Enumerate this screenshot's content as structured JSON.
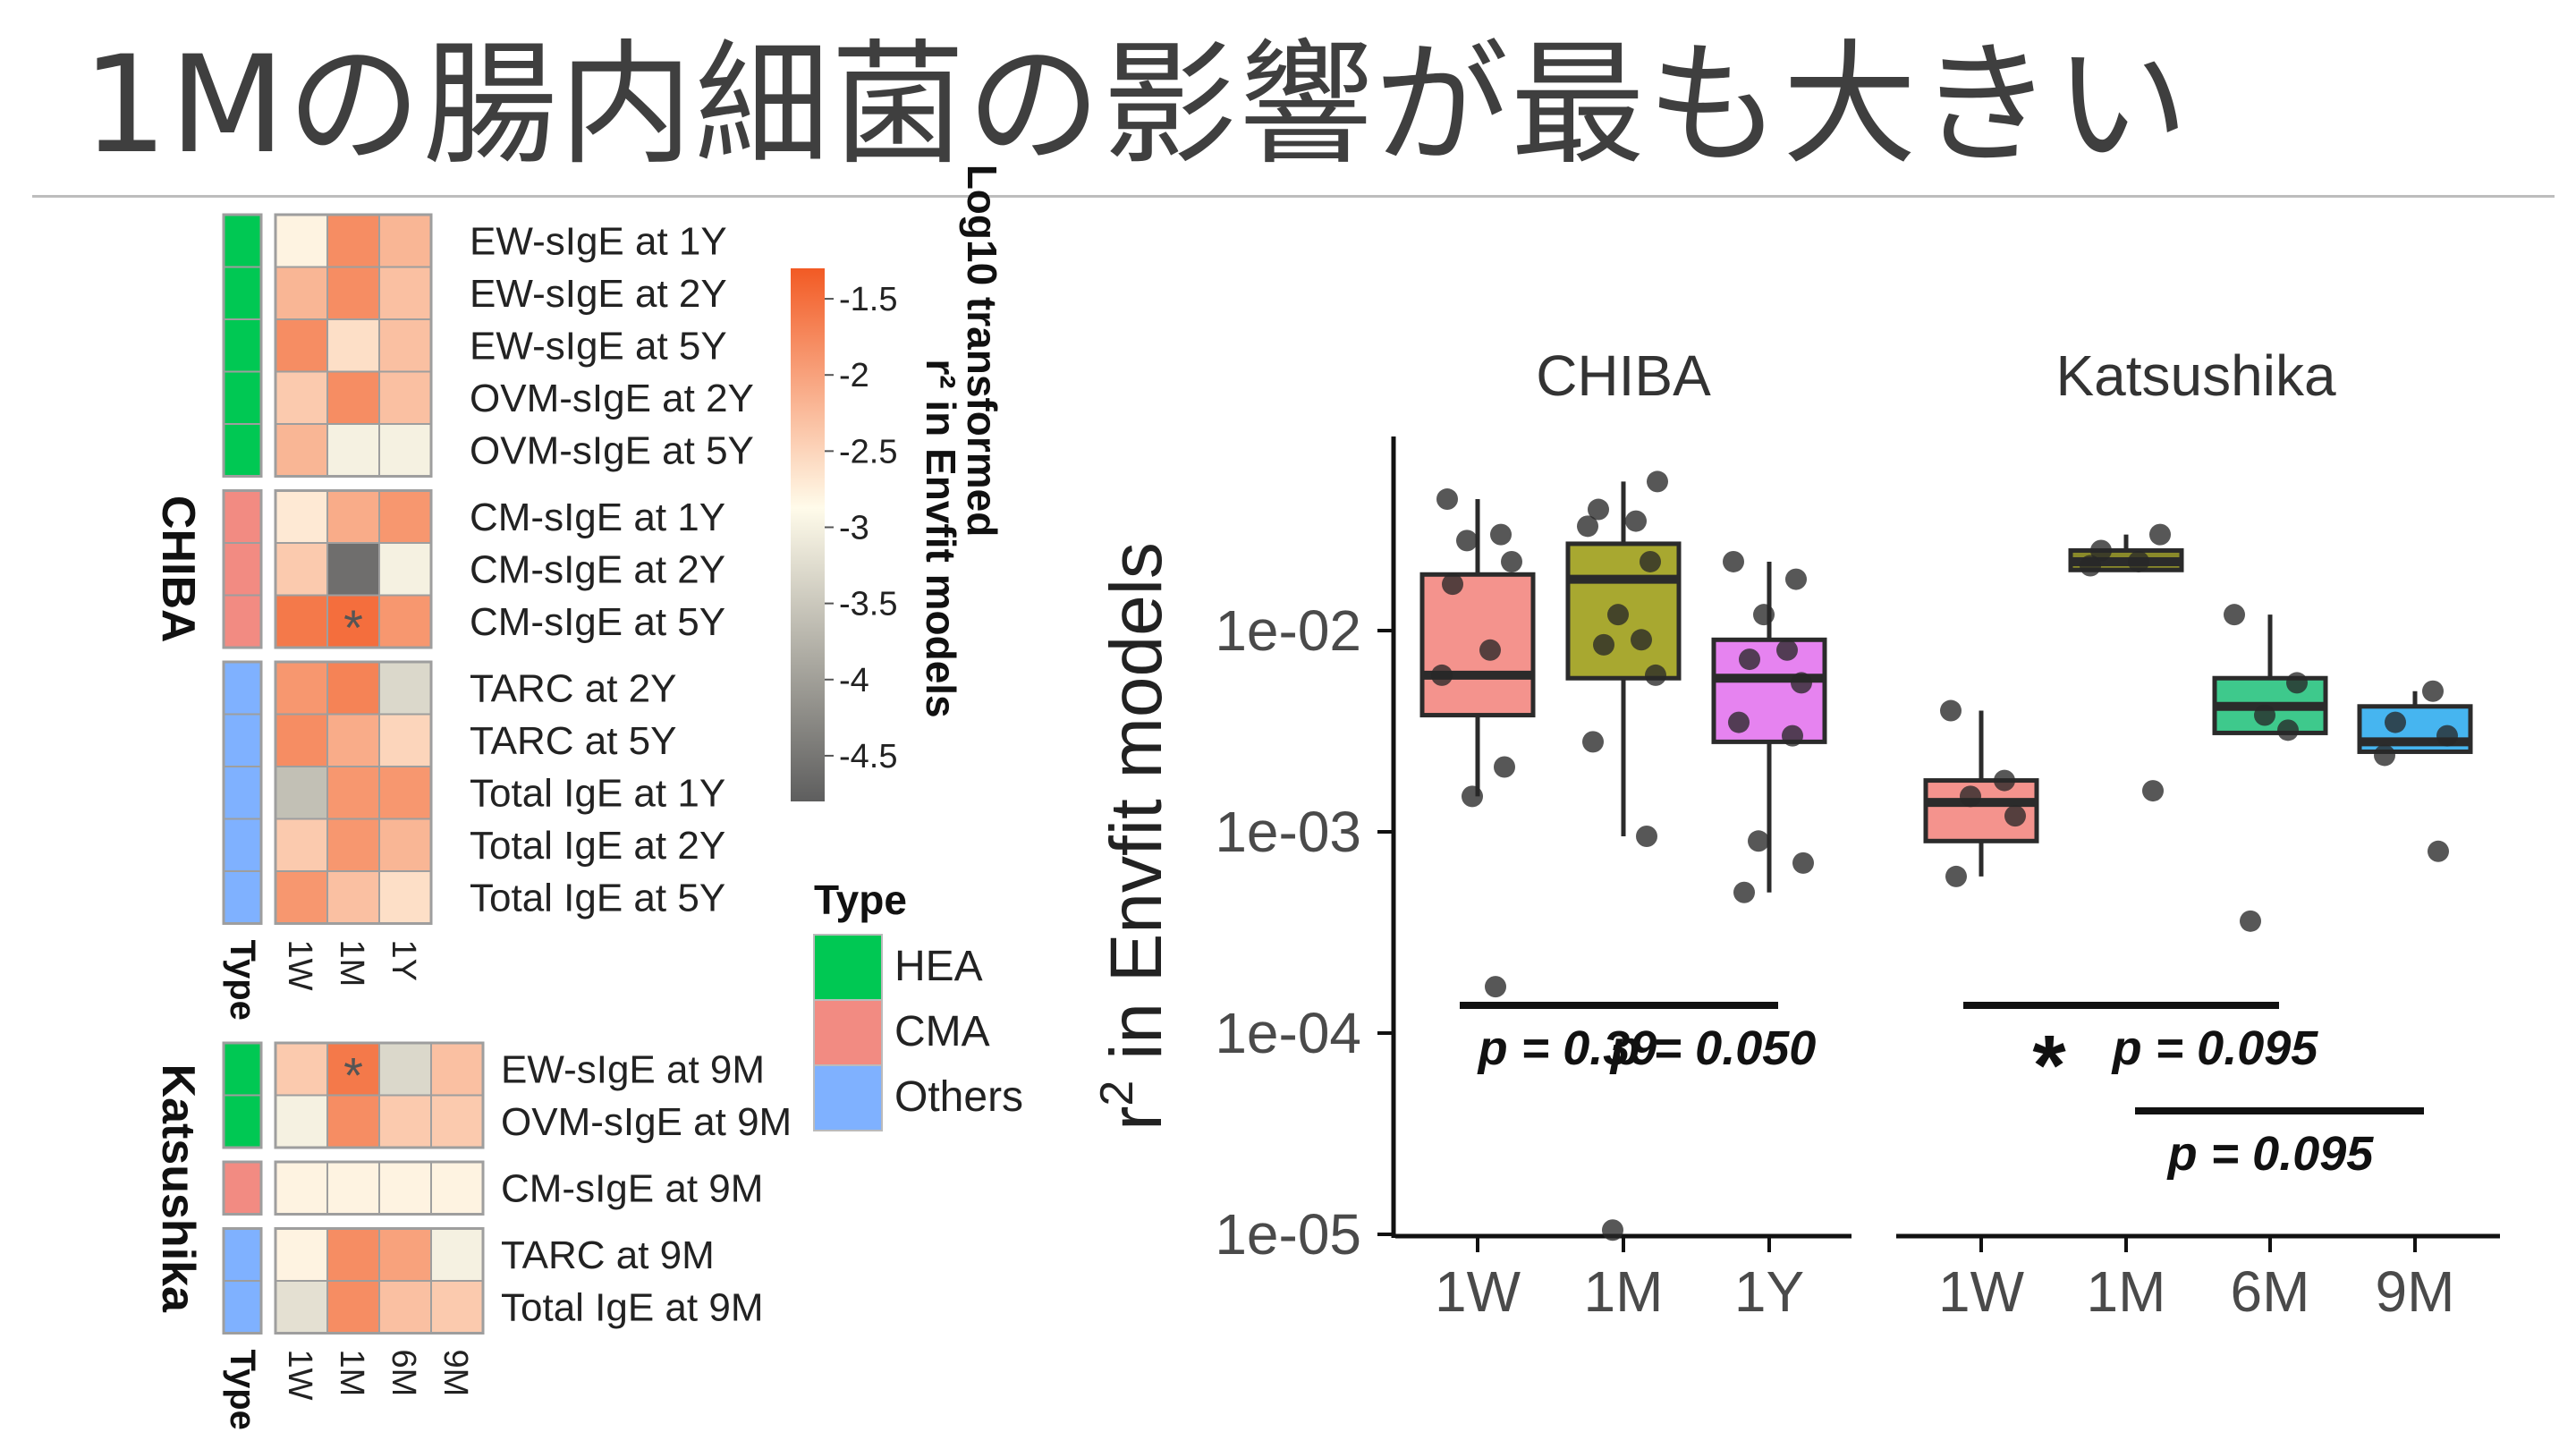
{
  "slide_title": "1Mの腸内細菌の影響が最も大きい",
  "chart_data": [
    {
      "type": "heatmap",
      "title": "",
      "colorbar": {
        "title_line1": "Log10 transformed",
        "title_line2": "r² in Envfit models",
        "ticks": [
          "-1.5",
          "-2",
          "-2.5",
          "-3",
          "-3.5",
          "-4",
          "-4.5"
        ],
        "range": [
          -4.8,
          -1.3
        ],
        "colors": [
          "#5e5e5e",
          "#fffbea",
          "#f25a24"
        ]
      },
      "type_legend": {
        "title": "Type",
        "entries": [
          {
            "label": "HEA",
            "color": "#00c853"
          },
          {
            "label": "CMA",
            "color": "#f28b82"
          },
          {
            "label": "Others",
            "color": "#7fb1ff"
          }
        ]
      },
      "type_axis_label": "Type",
      "cohorts": [
        {
          "name": "CHIBA",
          "columns": [
            "1W",
            "1M",
            "1Y"
          ],
          "groups": [
            {
              "type": "HEA",
              "rows": [
                {
                  "label": "EW-sIgE at 1Y",
                  "values": [
                    -2.8,
                    -1.8,
                    -2.2
                  ]
                },
                {
                  "label": "EW-sIgE at 2Y",
                  "values": [
                    -2.2,
                    -1.8,
                    -2.3
                  ]
                },
                {
                  "label": "EW-sIgE at 5Y",
                  "values": [
                    -1.8,
                    -2.6,
                    -2.3
                  ]
                },
                {
                  "label": "OVM-sIgE at 2Y",
                  "values": [
                    -2.4,
                    -1.8,
                    -2.3
                  ]
                },
                {
                  "label": "OVM-sIgE at 5Y",
                  "values": [
                    -2.2,
                    -3.0,
                    -3.0
                  ]
                }
              ]
            },
            {
              "type": "CMA",
              "rows": [
                {
                  "label": "CM-sIgE at 1Y",
                  "values": [
                    -2.7,
                    -2.1,
                    -1.9
                  ]
                },
                {
                  "label": "CM-sIgE at 2Y",
                  "values": [
                    -2.4,
                    -4.6,
                    -3.0
                  ]
                },
                {
                  "label": "CM-sIgE at 5Y",
                  "values": [
                    -1.6,
                    -1.5,
                    -1.9
                  ]
                }
              ]
            },
            {
              "type": "Others",
              "rows": [
                {
                  "label": "TARC at 2Y",
                  "values": [
                    -1.9,
                    -1.7,
                    -3.3
                  ]
                },
                {
                  "label": "TARC at 5Y",
                  "values": [
                    -1.8,
                    -2.1,
                    -2.5
                  ]
                },
                {
                  "label": "Total IgE at 1Y",
                  "values": [
                    -3.6,
                    -1.9,
                    -1.9
                  ]
                },
                {
                  "label": "Total IgE at 2Y",
                  "values": [
                    -2.4,
                    -1.9,
                    -2.2
                  ]
                },
                {
                  "label": "Total IgE at 5Y",
                  "values": [
                    -1.9,
                    -2.3,
                    -2.6
                  ]
                }
              ]
            }
          ],
          "significant_cells": [
            {
              "row": "CM-sIgE at 5Y",
              "column": "1M",
              "mark": "*"
            }
          ]
        },
        {
          "name": "Katsushika",
          "columns": [
            "1W",
            "1M",
            "6M",
            "9M"
          ],
          "groups": [
            {
              "type": "HEA",
              "rows": [
                {
                  "label": "EW-sIgE at 9M",
                  "values": [
                    -2.4,
                    -1.6,
                    -3.3,
                    -2.3
                  ]
                },
                {
                  "label": "OVM-sIgE at 9M",
                  "values": [
                    -3.0,
                    -1.8,
                    -2.4,
                    -2.4
                  ]
                }
              ]
            },
            {
              "type": "CMA",
              "rows": [
                {
                  "label": "CM-sIgE at 9M",
                  "values": [
                    -2.8,
                    -2.8,
                    -2.8,
                    -2.8
                  ]
                }
              ]
            },
            {
              "type": "Others",
              "rows": [
                {
                  "label": "TARC at 9M",
                  "values": [
                    -2.8,
                    -1.8,
                    -2.0,
                    -3.0
                  ]
                },
                {
                  "label": "Total IgE at 9M",
                  "values": [
                    -3.2,
                    -1.8,
                    -2.3,
                    -2.4
                  ]
                }
              ]
            }
          ],
          "significant_cells": [
            {
              "row": "EW-sIgE at 9M",
              "column": "1M",
              "mark": "*"
            }
          ]
        }
      ]
    },
    {
      "type": "box",
      "ylabel": "r² in Envfit models",
      "ylabel_base": "r",
      "ylabel_sup": "2",
      "ylabel_rest": " in Envfit models",
      "yscale": "log",
      "ylim": [
        1e-05,
        0.1
      ],
      "yticks": [
        {
          "value": 0.01,
          "label": "1e-02"
        },
        {
          "value": 0.001,
          "label": "1e-03"
        },
        {
          "value": 0.0001,
          "label": "1e-04"
        },
        {
          "value": 1e-05,
          "label": "1e-05"
        }
      ],
      "facets": [
        {
          "name": "CHIBA",
          "groups": [
            {
              "label": "1W",
              "color": "#f4938d",
              "q1": 0.0038,
              "median": 0.006,
              "q3": 0.019,
              "whisker_low": 0.0015,
              "whisker_high": 0.045,
              "points": [
                0.045,
                0.03,
                0.028,
                0.022,
                0.017,
                0.008,
                0.006,
                0.0021,
                0.0015,
                0.00017
              ]
            },
            {
              "label": "1M",
              "color": "#a8a830",
              "q1": 0.0058,
              "median": 0.018,
              "q3": 0.027,
              "whisker_low": 0.00095,
              "whisker_high": 0.055,
              "points": [
                0.055,
                0.04,
                0.035,
                0.033,
                0.022,
                0.012,
                0.009,
                0.0085,
                0.006,
                0.0028,
                0.00095,
                1.05e-05
              ]
            },
            {
              "label": "1Y",
              "color": "#e683f0",
              "q1": 0.0028,
              "median": 0.0058,
              "q3": 0.009,
              "whisker_low": 0.0005,
              "whisker_high": 0.022,
              "points": [
                0.022,
                0.018,
                0.012,
                0.008,
                0.0072,
                0.0055,
                0.0035,
                0.003,
                0.0009,
                0.0007,
                0.0005
              ]
            }
          ],
          "comparisons": [
            {
              "from": "1W",
              "to": "1M",
              "label": "p = 0.39",
              "level": 0
            },
            {
              "from": "1M",
              "to": "1Y",
              "label": "p = 0.050",
              "level": 0
            }
          ]
        },
        {
          "name": "Katsushika",
          "groups": [
            {
              "label": "1W",
              "color": "#f4938d",
              "q1": 0.0009,
              "median": 0.0014,
              "q3": 0.0018,
              "whisker_low": 0.0006,
              "whisker_high": 0.004,
              "points": [
                0.004,
                0.0018,
                0.0015,
                0.0012,
                0.0006
              ]
            },
            {
              "label": "1M",
              "color": "#8a8a2a",
              "q1": 0.02,
              "median": 0.022,
              "q3": 0.025,
              "whisker_low": 0.02,
              "whisker_high": 0.03,
              "points": [
                0.03,
                0.025,
                0.022,
                0.021,
                0.0016
              ]
            },
            {
              "label": "6M",
              "color": "#3ec98c",
              "q1": 0.0031,
              "median": 0.0042,
              "q3": 0.0058,
              "whisker_low": 0.0031,
              "whisker_high": 0.012,
              "points": [
                0.012,
                0.0055,
                0.0038,
                0.0032,
                0.00036
              ]
            },
            {
              "label": "9M",
              "color": "#46b5f0",
              "q1": 0.0025,
              "median": 0.0028,
              "q3": 0.0042,
              "whisker_low": 0.0025,
              "whisker_high": 0.005,
              "points": [
                0.005,
                0.0035,
                0.003,
                0.0024,
                0.0008
              ]
            }
          ],
          "comparisons": [
            {
              "from": "1W",
              "to": "1M",
              "label": "*",
              "level": 0
            },
            {
              "from": "1M",
              "to": "6M",
              "label": "p = 0.095",
              "level": 0
            },
            {
              "from": "1M",
              "to": "9M",
              "label": "p = 0.095",
              "level": 1
            }
          ]
        }
      ]
    }
  ]
}
